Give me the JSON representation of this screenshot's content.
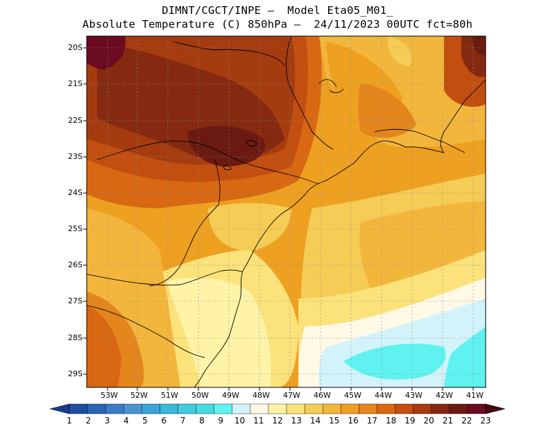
{
  "header": {
    "line1": "DIMNT/CGCT/INPE –  Model Eta05_M01_",
    "line2": "Absolute Temperature (C) 850hPa –  24/11/2023 00UTC fct=80h"
  },
  "axes": {
    "lat_labels": [
      "20S",
      "21S",
      "22S",
      "23S",
      "24S",
      "25S",
      "26S",
      "27S",
      "28S",
      "29S"
    ],
    "lon_labels": [
      "53W",
      "52W",
      "51W",
      "50W",
      "49W",
      "48W",
      "47W",
      "46W",
      "45W",
      "44W",
      "43W",
      "42W",
      "41W"
    ]
  },
  "colorbar": {
    "labels": [
      "1",
      "2",
      "3",
      "4",
      "5",
      "6",
      "7",
      "8",
      "9",
      "10",
      "11",
      "12",
      "13",
      "14",
      "15",
      "16",
      "17",
      "18",
      "19",
      "20",
      "21",
      "22",
      "23"
    ],
    "colors": [
      "#1a3a8f",
      "#1f4ea3",
      "#2a64b4",
      "#3a7cc4",
      "#4a93d0",
      "#3fa3d6",
      "#3ab8dc",
      "#40cce0",
      "#45dbe3",
      "#5ff2f0",
      "#d3f3fb",
      "#fff9e6",
      "#fff3a8",
      "#fbe27a",
      "#f5cc55",
      "#f3b63c",
      "#eea020",
      "#e4861c",
      "#d86812",
      "#c24f10",
      "#a43c10",
      "#852a10",
      "#6a1a10",
      "#6b0a20",
      "#4a0610"
    ]
  },
  "map_data": {
    "variable": "Absolute Temperature",
    "units": "C",
    "level": "850hPa",
    "lat_range": [
      "29.5S",
      "19.7S"
    ],
    "lon_range": [
      "53.8W",
      "40.5W"
    ]
  }
}
